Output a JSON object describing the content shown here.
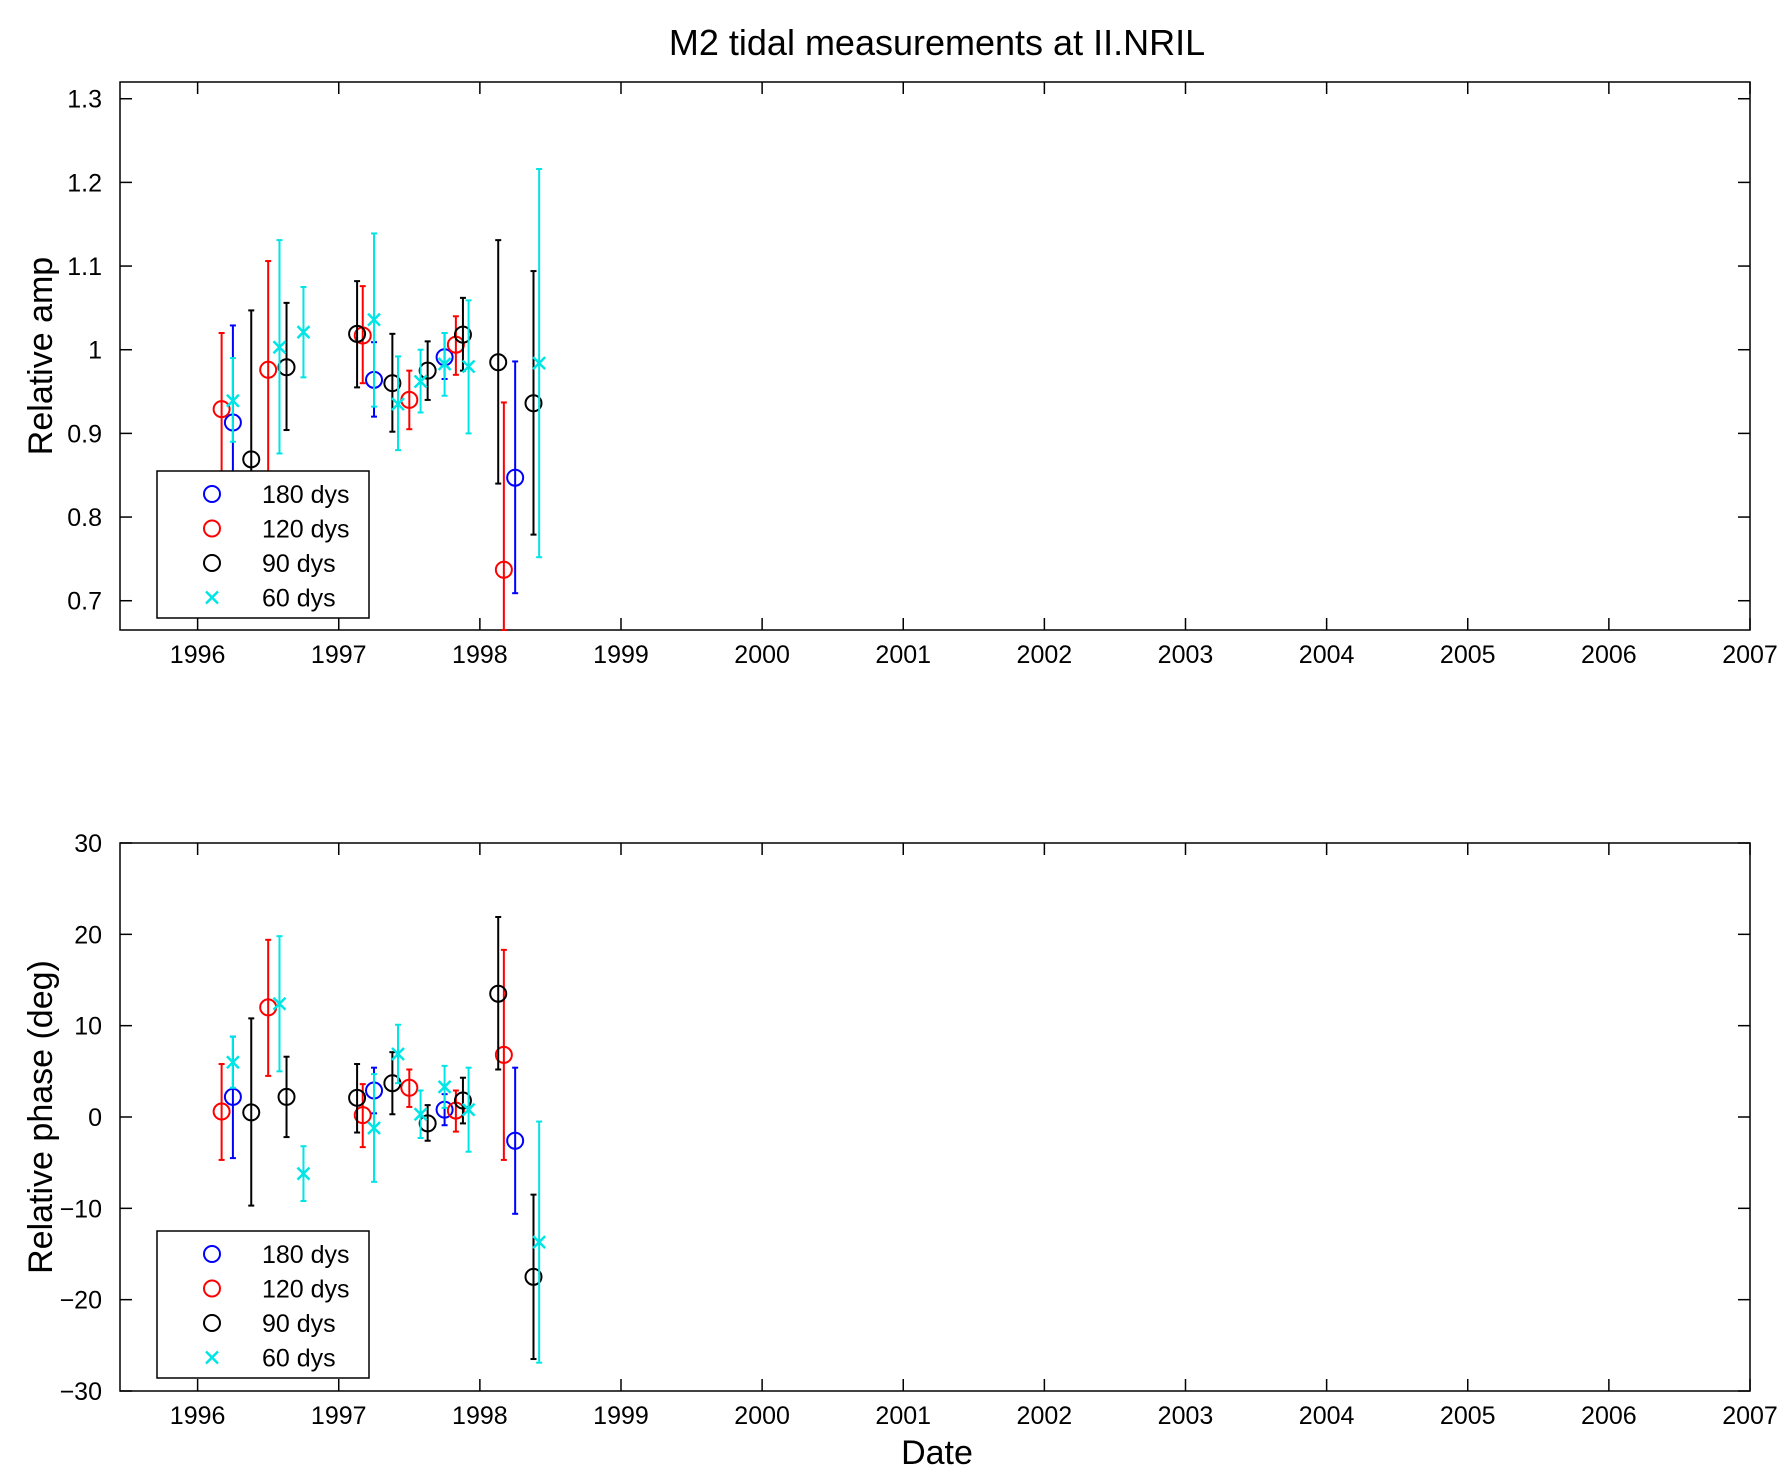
{
  "figure": {
    "title": "M2 tidal measurements at II.NRIL",
    "xlabel": "Date"
  },
  "chart_data": [
    {
      "type": "scatter",
      "error_bars": true,
      "ylabel": "Relative amp",
      "xlim": [
        1995.45,
        2007.0
      ],
      "ylim": [
        0.665,
        1.32
      ],
      "x_ticks": [
        "1996",
        "1997",
        "1998",
        "1999",
        "2000",
        "2001",
        "2002",
        "2003",
        "2004",
        "2005",
        "2006",
        "2007"
      ],
      "y_ticks": [
        "0.7",
        "0.8",
        "0.9",
        "1",
        "1.1",
        "1.2",
        "1.3"
      ],
      "legend": {
        "position": "bottom-left",
        "entries": [
          "180 dys",
          "120 dys",
          "90 dys",
          "60 dys"
        ]
      },
      "series": [
        {
          "name": "180 dys",
          "color": "#0000ff",
          "marker": "circle",
          "points": [
            {
              "x": "1996.25",
              "y": 0.913,
              "lo": 0.8,
              "hi": 1.029
            },
            {
              "x": "1997.25",
              "y": 0.964,
              "lo": 0.92,
              "hi": 1.009
            },
            {
              "x": "1997.75",
              "y": 0.991,
              "lo": 0.965,
              "hi": 1.02
            },
            {
              "x": "1998.25",
              "y": 0.847,
              "lo": 0.709,
              "hi": 0.986
            }
          ]
        },
        {
          "name": "120 dys",
          "color": "#ff0000",
          "marker": "circle",
          "points": [
            {
              "x": "1996.17",
              "y": 0.929,
              "lo": 0.84,
              "hi": 1.02
            },
            {
              "x": "1996.50",
              "y": 0.976,
              "lo": 0.84,
              "hi": 1.106
            },
            {
              "x": "1997.17",
              "y": 1.017,
              "lo": 0.96,
              "hi": 1.076
            },
            {
              "x": "1997.50",
              "y": 0.94,
              "lo": 0.905,
              "hi": 0.975
            },
            {
              "x": "1997.83",
              "y": 1.006,
              "lo": 0.97,
              "hi": 1.04
            },
            {
              "x": "1998.17",
              "y": 0.737,
              "lo": 0.665,
              "hi": 0.937
            }
          ]
        },
        {
          "name": "90 dys",
          "color": "#000000",
          "marker": "circle",
          "points": [
            {
              "x": "1996.38",
              "y": 0.869,
              "lo": 0.8,
              "hi": 1.047
            },
            {
              "x": "1996.63",
              "y": 0.979,
              "lo": 0.904,
              "hi": 1.056
            },
            {
              "x": "1997.13",
              "y": 1.019,
              "lo": 0.955,
              "hi": 1.082
            },
            {
              "x": "1997.38",
              "y": 0.96,
              "lo": 0.902,
              "hi": 1.019
            },
            {
              "x": "1997.63",
              "y": 0.975,
              "lo": 0.94,
              "hi": 1.01
            },
            {
              "x": "1997.88",
              "y": 1.018,
              "lo": 0.975,
              "hi": 1.062
            },
            {
              "x": "1998.13",
              "y": 0.985,
              "lo": 0.84,
              "hi": 1.131
            },
            {
              "x": "1998.38",
              "y": 0.936,
              "lo": 0.779,
              "hi": 1.094
            }
          ]
        },
        {
          "name": "60 dys",
          "color": "#00e5e5",
          "marker": "x",
          "points": [
            {
              "x": "1996.25",
              "y": 0.939,
              "lo": 0.89,
              "hi": 0.99
            },
            {
              "x": "1996.58",
              "y": 1.003,
              "lo": 0.876,
              "hi": 1.131
            },
            {
              "x": "1996.75",
              "y": 1.021,
              "lo": 0.967,
              "hi": 1.075
            },
            {
              "x": "1997.25",
              "y": 1.036,
              "lo": 0.932,
              "hi": 1.139
            },
            {
              "x": "1997.42",
              "y": 0.935,
              "lo": 0.88,
              "hi": 0.992
            },
            {
              "x": "1997.58",
              "y": 0.962,
              "lo": 0.925,
              "hi": 1.0
            },
            {
              "x": "1997.75",
              "y": 0.983,
              "lo": 0.945,
              "hi": 1.02
            },
            {
              "x": "1997.92",
              "y": 0.98,
              "lo": 0.9,
              "hi": 1.059
            },
            {
              "x": "1998.42",
              "y": 0.984,
              "lo": 0.752,
              "hi": 1.216
            }
          ]
        }
      ]
    },
    {
      "type": "scatter",
      "error_bars": true,
      "ylabel": "Relative phase (deg)",
      "xlim": [
        1995.45,
        2007.0
      ],
      "ylim": [
        -30,
        30
      ],
      "x_ticks": [
        "1996",
        "1997",
        "1998",
        "1999",
        "2000",
        "2001",
        "2002",
        "2003",
        "2004",
        "2005",
        "2006",
        "2007"
      ],
      "y_ticks": [
        "−30",
        "−20",
        "−10",
        "0",
        "10",
        "20",
        "30"
      ],
      "legend": {
        "position": "bottom-left",
        "entries": [
          "180 dys",
          "120 dys",
          "90 dys",
          "60 dys"
        ]
      },
      "series": [
        {
          "name": "180 dys",
          "color": "#0000ff",
          "marker": "circle",
          "points": [
            {
              "x": "1996.25",
              "y": 2.2,
              "lo": -4.5,
              "hi": 8.8
            },
            {
              "x": "1997.25",
              "y": 2.9,
              "lo": 0.4,
              "hi": 5.4
            },
            {
              "x": "1997.75",
              "y": 0.8,
              "lo": -0.9,
              "hi": 2.5
            },
            {
              "x": "1998.25",
              "y": -2.6,
              "lo": -10.6,
              "hi": 5.4
            }
          ]
        },
        {
          "name": "120 dys",
          "color": "#ff0000",
          "marker": "circle",
          "points": [
            {
              "x": "1996.17",
              "y": 0.6,
              "lo": -4.7,
              "hi": 5.8
            },
            {
              "x": "1996.50",
              "y": 12.0,
              "lo": 4.5,
              "hi": 19.4
            },
            {
              "x": "1997.17",
              "y": 0.2,
              "lo": -3.3,
              "hi": 3.6
            },
            {
              "x": "1997.50",
              "y": 3.2,
              "lo": 1.1,
              "hi": 5.2
            },
            {
              "x": "1997.83",
              "y": 0.7,
              "lo": -1.6,
              "hi": 2.9
            },
            {
              "x": "1998.17",
              "y": 6.8,
              "lo": -4.7,
              "hi": 18.3
            }
          ]
        },
        {
          "name": "90 dys",
          "color": "#000000",
          "marker": "circle",
          "points": [
            {
              "x": "1996.38",
              "y": 0.5,
              "lo": -9.7,
              "hi": 10.8
            },
            {
              "x": "1996.63",
              "y": 2.2,
              "lo": -2.2,
              "hi": 6.6
            },
            {
              "x": "1997.13",
              "y": 2.1,
              "lo": -1.7,
              "hi": 5.8
            },
            {
              "x": "1997.38",
              "y": 3.7,
              "lo": 0.3,
              "hi": 7.1
            },
            {
              "x": "1997.63",
              "y": -0.7,
              "lo": -2.6,
              "hi": 1.3
            },
            {
              "x": "1997.88",
              "y": 1.8,
              "lo": -0.7,
              "hi": 4.3
            },
            {
              "x": "1998.13",
              "y": 13.5,
              "lo": 5.2,
              "hi": 21.9
            },
            {
              "x": "1998.38",
              "y": -17.5,
              "lo": -26.5,
              "hi": -8.5
            }
          ]
        },
        {
          "name": "60 dys",
          "color": "#00e5e5",
          "marker": "x",
          "points": [
            {
              "x": "1996.25",
              "y": 6.0,
              "lo": 3.2,
              "hi": 8.8
            },
            {
              "x": "1996.58",
              "y": 12.4,
              "lo": 5.0,
              "hi": 19.8
            },
            {
              "x": "1996.75",
              "y": -6.2,
              "lo": -9.2,
              "hi": -3.2
            },
            {
              "x": "1997.25",
              "y": -1.2,
              "lo": -7.1,
              "hi": 4.7
            },
            {
              "x": "1997.42",
              "y": 6.9,
              "lo": 3.7,
              "hi": 10.1
            },
            {
              "x": "1997.58",
              "y": 0.3,
              "lo": -2.3,
              "hi": 2.9
            },
            {
              "x": "1997.75",
              "y": 3.3,
              "lo": 1.0,
              "hi": 5.6
            },
            {
              "x": "1997.92",
              "y": 0.8,
              "lo": -3.8,
              "hi": 5.4
            },
            {
              "x": "1998.42",
              "y": -13.7,
              "lo": -26.9,
              "hi": -0.5
            }
          ]
        }
      ]
    }
  ]
}
